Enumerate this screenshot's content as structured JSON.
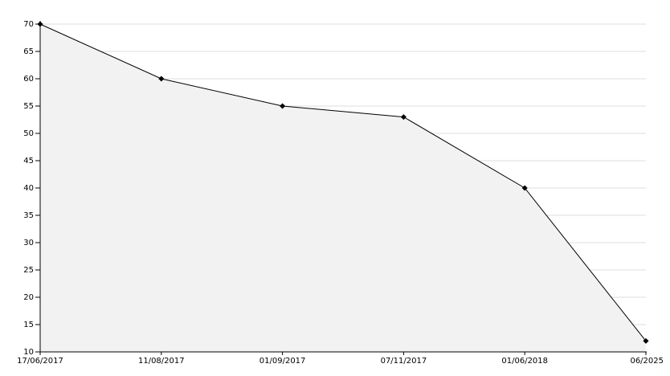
{
  "chart_data": {
    "type": "area",
    "categories": [
      "17/06/2017",
      "11/08/2017",
      "01/09/2017",
      "07/11/2017",
      "01/06/2018",
      "06/2025"
    ],
    "values": [
      70,
      60,
      55,
      53,
      40,
      12
    ],
    "color": "#000000",
    "fill": "#f2f2f2",
    "ylim": [
      10,
      70
    ],
    "yticks": [
      10,
      15,
      20,
      25,
      30,
      35,
      40,
      45,
      50,
      55,
      60,
      65,
      70
    ],
    "grid": true
  }
}
